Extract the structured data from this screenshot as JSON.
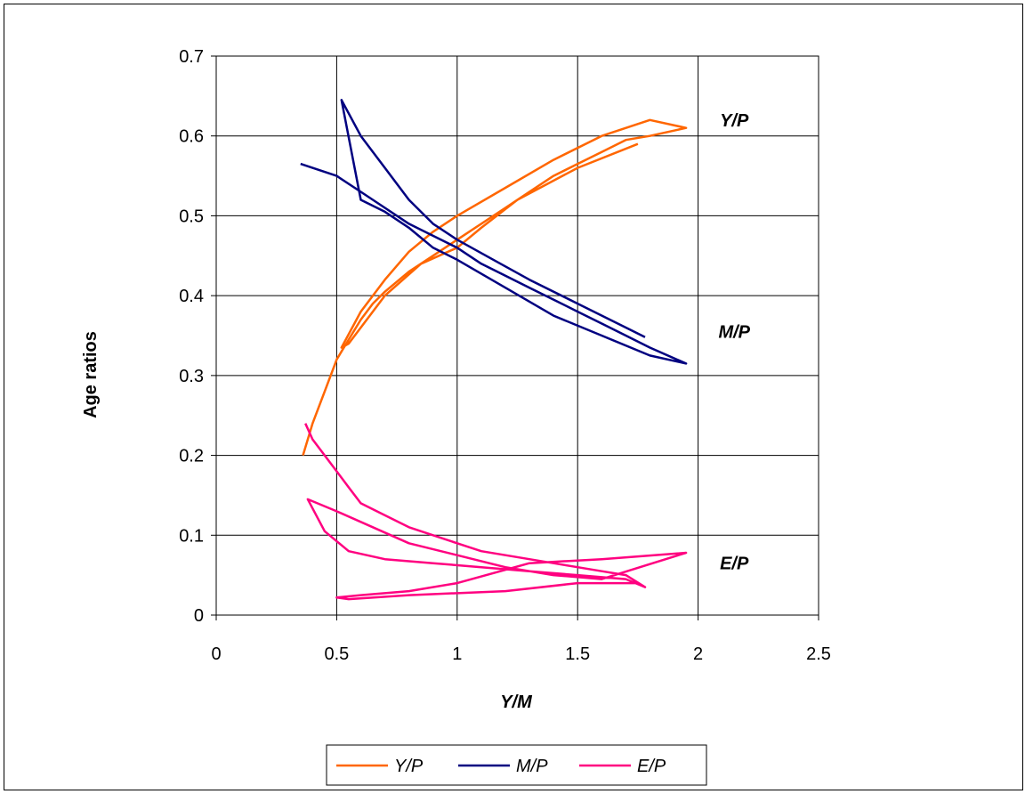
{
  "chart_data": {
    "type": "line",
    "title": "",
    "xlabel": "Y/M",
    "ylabel": "Age ratios",
    "xlim": [
      0,
      2.5
    ],
    "ylim": [
      0,
      0.7
    ],
    "xticks": [
      "0",
      "0.5",
      "1",
      "1.5",
      "2",
      "2.5"
    ],
    "yticks": [
      "0",
      "0.1",
      "0.2",
      "0.3",
      "0.4",
      "0.5",
      "0.6",
      "0.7"
    ],
    "grid": true,
    "legend_position": "bottom",
    "annotations": [
      {
        "text": "Y/P",
        "x": 2.15,
        "y": 0.62
      },
      {
        "text": "M/P",
        "x": 2.15,
        "y": 0.355
      },
      {
        "text": "E/P",
        "x": 2.15,
        "y": 0.065
      }
    ],
    "series": [
      {
        "name": "Y/P",
        "color": "#FF6600",
        "points": [
          [
            0.36,
            0.2
          ],
          [
            0.4,
            0.24
          ],
          [
            0.45,
            0.28
          ],
          [
            0.5,
            0.32
          ],
          [
            0.55,
            0.345
          ],
          [
            0.6,
            0.37
          ],
          [
            0.65,
            0.39
          ],
          [
            0.7,
            0.405
          ],
          [
            0.8,
            0.43
          ],
          [
            0.9,
            0.45
          ],
          [
            1.0,
            0.47
          ],
          [
            1.1,
            0.49
          ],
          [
            1.2,
            0.51
          ],
          [
            1.3,
            0.53
          ],
          [
            1.4,
            0.55
          ],
          [
            1.5,
            0.565
          ],
          [
            1.6,
            0.58
          ],
          [
            1.7,
            0.595
          ],
          [
            1.8,
            0.6
          ],
          [
            1.95,
            0.61
          ],
          [
            1.8,
            0.62
          ],
          [
            1.6,
            0.6
          ],
          [
            1.4,
            0.57
          ],
          [
            1.2,
            0.535
          ],
          [
            1.0,
            0.5
          ],
          [
            0.9,
            0.48
          ],
          [
            0.8,
            0.455
          ],
          [
            0.7,
            0.42
          ],
          [
            0.6,
            0.38
          ],
          [
            0.52,
            0.335
          ],
          [
            0.55,
            0.34
          ],
          [
            0.7,
            0.4
          ],
          [
            0.85,
            0.44
          ],
          [
            1.0,
            0.46
          ],
          [
            1.1,
            0.485
          ],
          [
            1.25,
            0.52
          ],
          [
            1.5,
            0.56
          ],
          [
            1.75,
            0.59
          ]
        ]
      },
      {
        "name": "M/P",
        "color": "#000080",
        "points": [
          [
            0.35,
            0.565
          ],
          [
            0.4,
            0.56
          ],
          [
            0.5,
            0.55
          ],
          [
            0.6,
            0.53
          ],
          [
            0.7,
            0.51
          ],
          [
            0.8,
            0.49
          ],
          [
            0.9,
            0.475
          ],
          [
            1.0,
            0.46
          ],
          [
            1.1,
            0.44
          ],
          [
            1.2,
            0.425
          ],
          [
            1.3,
            0.41
          ],
          [
            1.4,
            0.395
          ],
          [
            1.5,
            0.38
          ],
          [
            1.6,
            0.365
          ],
          [
            1.7,
            0.35
          ],
          [
            1.8,
            0.335
          ],
          [
            1.95,
            0.315
          ],
          [
            1.8,
            0.325
          ],
          [
            1.6,
            0.35
          ],
          [
            1.4,
            0.375
          ],
          [
            1.2,
            0.41
          ],
          [
            1.0,
            0.445
          ],
          [
            0.9,
            0.46
          ],
          [
            0.8,
            0.485
          ],
          [
            0.7,
            0.505
          ],
          [
            0.6,
            0.52
          ],
          [
            0.52,
            0.645
          ],
          [
            0.6,
            0.6
          ],
          [
            0.7,
            0.56
          ],
          [
            0.8,
            0.52
          ],
          [
            0.9,
            0.49
          ],
          [
            1.0,
            0.47
          ],
          [
            1.15,
            0.445
          ],
          [
            1.3,
            0.42
          ],
          [
            1.5,
            0.39
          ],
          [
            1.7,
            0.36
          ],
          [
            1.78,
            0.348
          ]
        ]
      },
      {
        "name": "E/P",
        "color": "#FF0080",
        "points": [
          [
            0.37,
            0.24
          ],
          [
            0.4,
            0.22
          ],
          [
            0.45,
            0.2
          ],
          [
            0.5,
            0.18
          ],
          [
            0.55,
            0.16
          ],
          [
            0.6,
            0.14
          ],
          [
            0.7,
            0.125
          ],
          [
            0.8,
            0.11
          ],
          [
            0.9,
            0.1
          ],
          [
            1.0,
            0.09
          ],
          [
            1.1,
            0.08
          ],
          [
            1.2,
            0.075
          ],
          [
            1.3,
            0.07
          ],
          [
            1.4,
            0.065
          ],
          [
            1.5,
            0.06
          ],
          [
            1.6,
            0.055
          ],
          [
            1.7,
            0.05
          ],
          [
            1.78,
            0.035
          ],
          [
            1.7,
            0.045
          ],
          [
            1.5,
            0.05
          ],
          [
            1.3,
            0.055
          ],
          [
            1.1,
            0.06
          ],
          [
            0.9,
            0.065
          ],
          [
            0.7,
            0.07
          ],
          [
            0.55,
            0.08
          ],
          [
            0.45,
            0.105
          ],
          [
            0.38,
            0.145
          ],
          [
            0.5,
            0.13
          ],
          [
            0.65,
            0.11
          ],
          [
            0.8,
            0.09
          ],
          [
            1.0,
            0.075
          ],
          [
            1.2,
            0.06
          ],
          [
            1.4,
            0.05
          ],
          [
            1.6,
            0.045
          ],
          [
            1.95,
            0.078
          ],
          [
            1.6,
            0.07
          ],
          [
            1.3,
            0.065
          ],
          [
            1.0,
            0.04
          ],
          [
            0.8,
            0.03
          ],
          [
            0.6,
            0.025
          ],
          [
            0.5,
            0.022
          ],
          [
            0.55,
            0.02
          ],
          [
            0.8,
            0.025
          ],
          [
            1.2,
            0.03
          ],
          [
            1.5,
            0.04
          ],
          [
            1.75,
            0.04
          ]
        ]
      }
    ]
  }
}
